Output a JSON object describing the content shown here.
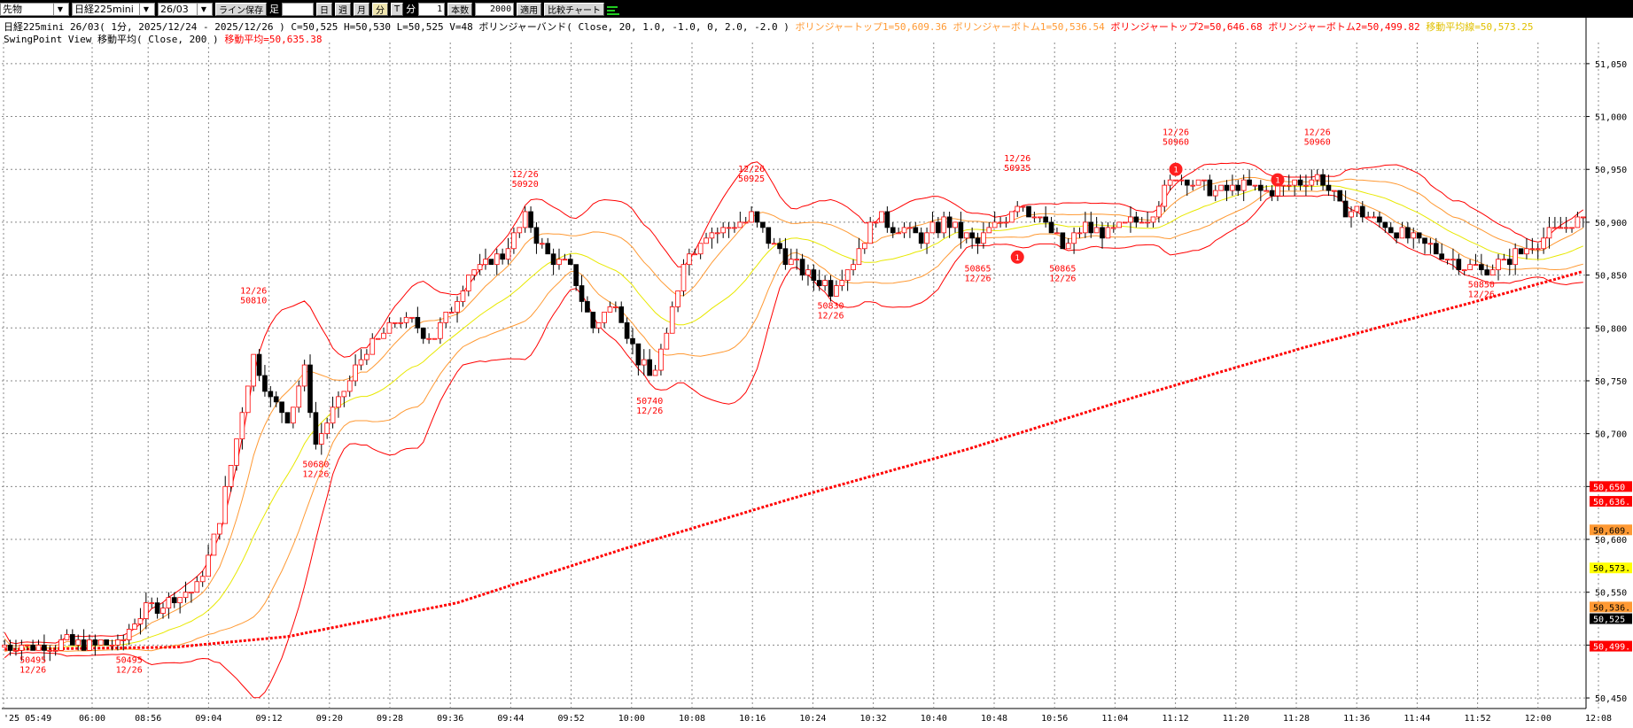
{
  "toolbar": {
    "market": "先物",
    "instrument": "日経225mini",
    "contract": "26/03",
    "line_save": "ライン保存",
    "bar_label": "足",
    "day_btn": "日",
    "week_btn": "週",
    "month_btn": "月",
    "minute_btn": "分",
    "tick_btn": "T",
    "unit_label": "分",
    "unit_value": "1",
    "count_label": "本数",
    "count_value": "2000",
    "apply_btn": "適用",
    "compare_btn": "比較チャート"
  },
  "info": {
    "line1_prefix": "日経225mini 26/03( 1分, 2025/12/24 - 2025/12/26 )  C=50,525 H=50,530 L=50,525 V=48  ボリンジャーバンド( Close, 20, 1.0, -1.0, 0, 2.0, -2.0 )",
    "line1_top1": "ボリンジャートップ1=50,609.36",
    "line1_bottom1": "ボリンジャーボトム1=50,536.54",
    "line1_top2": "ボリンジャートップ2=50,646.68",
    "line1_bottom2": "ボリンジャーボトム2=50,499.82",
    "line1_mid": "移動平均線=50,573.25",
    "line2_prefix": "SwingPoint View   移動平均( Close, 200 )",
    "line2_ma": "移動平均=50,635.38"
  },
  "colors": {
    "up": "#ffffff",
    "down": "#000000",
    "band2": "#ff0000",
    "band1": "#ff9933",
    "mid": "#e8e800",
    "ma200": "#ff0000",
    "grid": "#888888",
    "label": "#ff0000"
  },
  "chart_data": {
    "type": "candlestick",
    "ylim": [
      50440,
      51070
    ],
    "y_ticks": [
      "51,050",
      "51,000",
      "50,950",
      "50,900",
      "50,850",
      "50,800",
      "50,750",
      "50,700",
      "50,650",
      "50,600",
      "50,550",
      "50,500",
      "50,450"
    ],
    "y_tick_values": [
      51050,
      51000,
      50950,
      50900,
      50850,
      50800,
      50750,
      50700,
      50650,
      50600,
      50550,
      50500,
      50450
    ],
    "x_ticks": [
      "'25 05:49",
      "06:00",
      "08:56",
      "09:04",
      "09:12",
      "09:20",
      "09:28",
      "09:36",
      "09:44",
      "09:52",
      "10:00",
      "10:08",
      "10:16",
      "10:24",
      "10:32",
      "10:40",
      "10:48",
      "10:56",
      "11:04",
      "11:12",
      "11:20",
      "11:28",
      "11:36",
      "11:44",
      "11:52",
      "12:00",
      "12:08"
    ],
    "price_tags": [
      {
        "text": "50,650",
        "value": 50650,
        "bg": "#ff0000",
        "fg": "#ffffff"
      },
      {
        "text": "50,636.",
        "value": 50636,
        "bg": "#ff0000",
        "fg": "#ffffff"
      },
      {
        "text": "50,609.",
        "value": 50609,
        "bg": "#ff9933",
        "fg": "#000000"
      },
      {
        "text": "50,573.",
        "value": 50573,
        "bg": "#ffff00",
        "fg": "#000000"
      },
      {
        "text": "50,536.",
        "value": 50536,
        "bg": "#ff9933",
        "fg": "#000000"
      },
      {
        "text": "50,525",
        "value": 50525,
        "bg": "#000000",
        "fg": "#ffffff"
      },
      {
        "text": "50,499.",
        "value": 50499,
        "bg": "#ff0000",
        "fg": "#ffffff"
      }
    ],
    "swing_labels": [
      {
        "lines": [
          "50495",
          "12/26"
        ],
        "bar": 5,
        "pos": "below",
        "value": 50495
      },
      {
        "lines": [
          "50495",
          "12/26"
        ],
        "bar": 22,
        "pos": "below",
        "value": 50495
      },
      {
        "lines": [
          "12/26",
          "50810"
        ],
        "bar": 44,
        "pos": "above",
        "value": 50810
      },
      {
        "lines": [
          "50680",
          "12/26"
        ],
        "bar": 55,
        "pos": "below",
        "value": 50680
      },
      {
        "lines": [
          "12/26",
          "50920"
        ],
        "bar": 92,
        "pos": "above",
        "value": 50920
      },
      {
        "lines": [
          "50740",
          "12/26"
        ],
        "bar": 114,
        "pos": "below",
        "value": 50740
      },
      {
        "lines": [
          "12/26",
          "50925"
        ],
        "bar": 132,
        "pos": "above",
        "value": 50925
      },
      {
        "lines": [
          "50830",
          "12/26"
        ],
        "bar": 146,
        "pos": "below",
        "value": 50830
      },
      {
        "lines": [
          "50865",
          "12/26"
        ],
        "bar": 172,
        "pos": "below",
        "value": 50865
      },
      {
        "lines": [
          "12/26",
          "50935"
        ],
        "bar": 179,
        "pos": "above",
        "value": 50935
      },
      {
        "lines": [
          "50865",
          "12/26"
        ],
        "bar": 187,
        "pos": "below",
        "value": 50865
      },
      {
        "lines": [
          "12/26",
          "50960"
        ],
        "bar": 207,
        "pos": "above",
        "value": 50960
      },
      {
        "lines": [
          "12/26",
          "50960"
        ],
        "bar": 232,
        "pos": "above",
        "value": 50960
      },
      {
        "lines": [
          "50850",
          "12/26"
        ],
        "bar": 261,
        "pos": "below",
        "value": 50850
      }
    ],
    "markers": [
      {
        "label": "1",
        "bar": 179,
        "value": 50867
      },
      {
        "label": "1",
        "bar": 207,
        "value": 50950
      },
      {
        "label": "1",
        "bar": 225,
        "value": 50940
      }
    ],
    "anchors": [
      {
        "bar": 0,
        "value": 50498
      },
      {
        "bar": 10,
        "value": 50502
      },
      {
        "bar": 20,
        "value": 50500
      },
      {
        "bar": 24,
        "value": 50530
      },
      {
        "bar": 34,
        "value": 50555
      },
      {
        "bar": 37,
        "value": 50600
      },
      {
        "bar": 40,
        "value": 50670
      },
      {
        "bar": 44,
        "value": 50775
      },
      {
        "bar": 47,
        "value": 50730
      },
      {
        "bar": 50,
        "value": 50715
      },
      {
        "bar": 53,
        "value": 50760
      },
      {
        "bar": 55,
        "value": 50690
      },
      {
        "bar": 58,
        "value": 50720
      },
      {
        "bar": 64,
        "value": 50780
      },
      {
        "bar": 70,
        "value": 50810
      },
      {
        "bar": 76,
        "value": 50790
      },
      {
        "bar": 82,
        "value": 50850
      },
      {
        "bar": 88,
        "value": 50870
      },
      {
        "bar": 92,
        "value": 50905
      },
      {
        "bar": 96,
        "value": 50870
      },
      {
        "bar": 100,
        "value": 50855
      },
      {
        "bar": 104,
        "value": 50800
      },
      {
        "bar": 108,
        "value": 50825
      },
      {
        "bar": 112,
        "value": 50770
      },
      {
        "bar": 114,
        "value": 50752
      },
      {
        "bar": 117,
        "value": 50790
      },
      {
        "bar": 120,
        "value": 50865
      },
      {
        "bar": 124,
        "value": 50890
      },
      {
        "bar": 128,
        "value": 50895
      },
      {
        "bar": 132,
        "value": 50905
      },
      {
        "bar": 136,
        "value": 50878
      },
      {
        "bar": 140,
        "value": 50858
      },
      {
        "bar": 144,
        "value": 50845
      },
      {
        "bar": 146,
        "value": 50838
      },
      {
        "bar": 150,
        "value": 50865
      },
      {
        "bar": 154,
        "value": 50905
      },
      {
        "bar": 158,
        "value": 50895
      },
      {
        "bar": 162,
        "value": 50885
      },
      {
        "bar": 166,
        "value": 50900
      },
      {
        "bar": 170,
        "value": 50885
      },
      {
        "bar": 172,
        "value": 50880
      },
      {
        "bar": 176,
        "value": 50900
      },
      {
        "bar": 179,
        "value": 50918
      },
      {
        "bar": 183,
        "value": 50905
      },
      {
        "bar": 187,
        "value": 50875
      },
      {
        "bar": 191,
        "value": 50895
      },
      {
        "bar": 195,
        "value": 50890
      },
      {
        "bar": 199,
        "value": 50900
      },
      {
        "bar": 203,
        "value": 50910
      },
      {
        "bar": 207,
        "value": 50945
      },
      {
        "bar": 211,
        "value": 50935
      },
      {
        "bar": 215,
        "value": 50930
      },
      {
        "bar": 219,
        "value": 50935
      },
      {
        "bar": 223,
        "value": 50930
      },
      {
        "bar": 227,
        "value": 50935
      },
      {
        "bar": 232,
        "value": 50945
      },
      {
        "bar": 236,
        "value": 50915
      },
      {
        "bar": 240,
        "value": 50908
      },
      {
        "bar": 244,
        "value": 50898
      },
      {
        "bar": 248,
        "value": 50885
      },
      {
        "bar": 252,
        "value": 50875
      },
      {
        "bar": 256,
        "value": 50865
      },
      {
        "bar": 261,
        "value": 50855
      },
      {
        "bar": 265,
        "value": 50862
      },
      {
        "bar": 269,
        "value": 50875
      },
      {
        "bar": 273,
        "value": 50888
      },
      {
        "bar": 277,
        "value": 50900
      }
    ],
    "ma200_line": [
      {
        "bar": 0,
        "value": 50496
      },
      {
        "bar": 30,
        "value": 50498
      },
      {
        "bar": 50,
        "value": 50508
      },
      {
        "bar": 80,
        "value": 50540
      },
      {
        "bar": 110,
        "value": 50592
      },
      {
        "bar": 140,
        "value": 50640
      },
      {
        "bar": 170,
        "value": 50685
      },
      {
        "bar": 200,
        "value": 50735
      },
      {
        "bar": 230,
        "value": 50782
      },
      {
        "bar": 260,
        "value": 50825
      },
      {
        "bar": 280,
        "value": 50855
      }
    ]
  }
}
